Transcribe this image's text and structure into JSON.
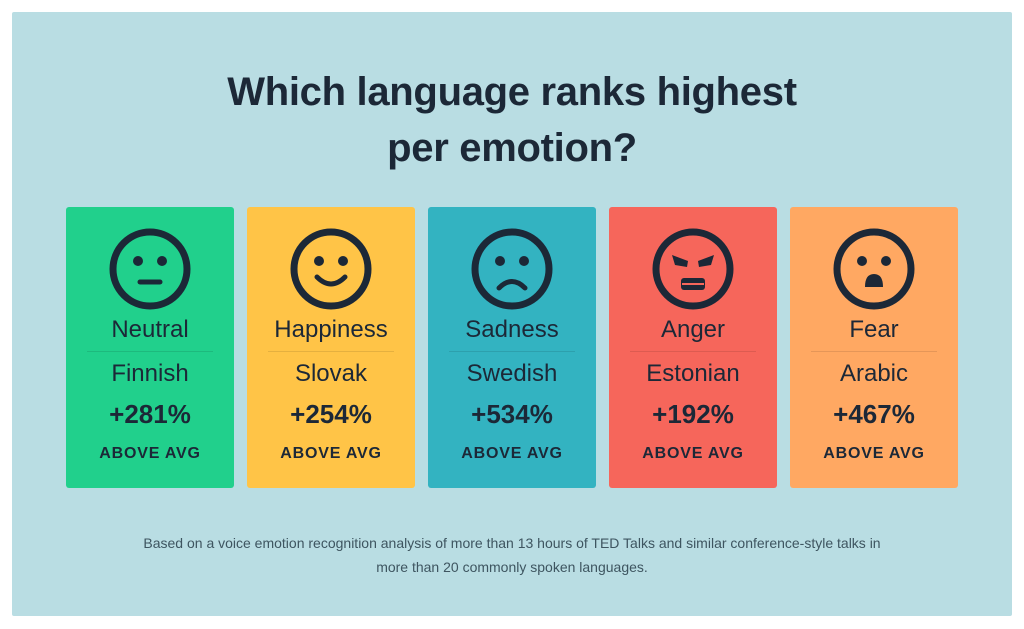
{
  "title": {
    "line1": "Which language ranks highest",
    "line2": "per emotion?"
  },
  "cards": [
    {
      "emotion": "Neutral",
      "language": "Finnish",
      "value": "+281%",
      "caption": "ABOVE AVG",
      "color": "#21d08c",
      "icon": "neutral-face-icon"
    },
    {
      "emotion": "Happiness",
      "language": "Slovak",
      "value": "+254%",
      "caption": "ABOVE AVG",
      "color": "#ffc447",
      "icon": "happy-face-icon"
    },
    {
      "emotion": "Sadness",
      "language": "Swedish",
      "value": "+534%",
      "caption": "ABOVE AVG",
      "color": "#33b3c1",
      "icon": "sad-face-icon"
    },
    {
      "emotion": "Anger",
      "language": "Estonian",
      "value": "+192%",
      "caption": "ABOVE AVG",
      "color": "#f6665b",
      "icon": "angry-face-icon"
    },
    {
      "emotion": "Fear",
      "language": "Arabic",
      "value": "+467%",
      "caption": "ABOVE AVG",
      "color": "#ffa862",
      "icon": "fearful-face-icon"
    }
  ],
  "footnote": {
    "line1": "Based on a voice emotion recognition analysis of more than 13 hours of TED Talks and similar conference-style talks in",
    "line2": "more than 20 commonly spoken languages."
  },
  "colors": {
    "background": "#b9dde3",
    "text": "#1c2837"
  }
}
